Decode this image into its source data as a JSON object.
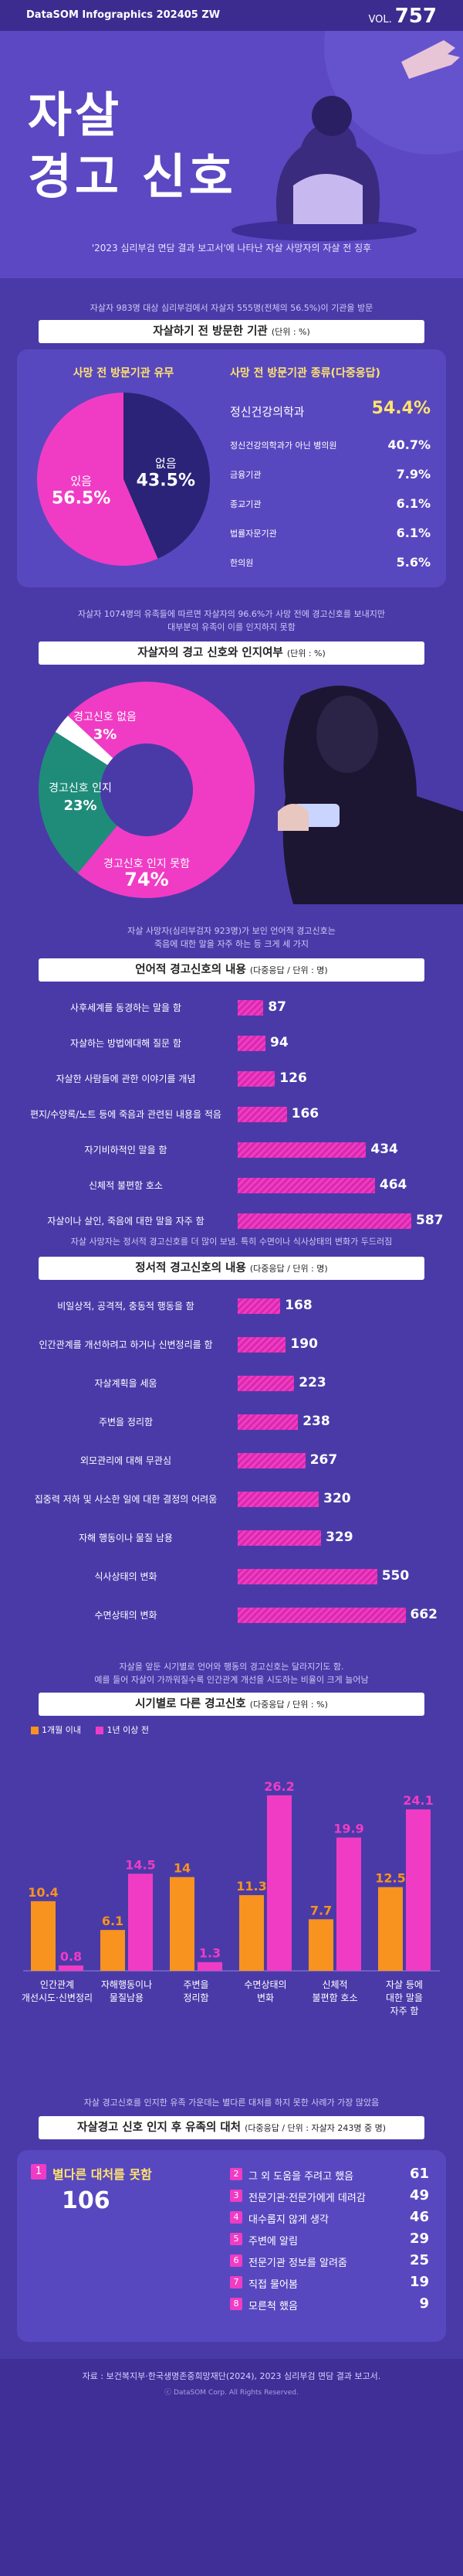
{
  "header": {
    "brand": "DataSOM Infographics 202405 ZW",
    "vol_label": "VOL.",
    "vol_num": "757"
  },
  "hero": {
    "title_line1": "자살",
    "title_line2": "경고 신호",
    "subtitle": "'2023 심리부검 면담 결과 보고서'에 나타난 자살 사망자의 자살 전 징후"
  },
  "section1": {
    "note": "자살자 983명 대상 심리부검에서 자살자 555명(전체의 56.5%)이 기관을 방문",
    "title": "자살하기 전 방문한 기관",
    "unit": "(단위 : %)",
    "pie_title": "사망 전 방문기관 유무",
    "list_title": "사망 전 방문기관 종류(다중응답)"
  },
  "section2": {
    "note_line1": "자살자 1074명의 유족들에 따르면 자살자의 96.6%가 사망 전에 경고신호를 보내지만",
    "note_line2": "대부분의 유족이 이를 인지하지 못함",
    "title": "자살자의 경고 신호와 인지여부",
    "unit": "(단위 : %)"
  },
  "section3": {
    "note_line1": "자살 사망자(심리부검자 923명)가 보인 언어적 경고신호는",
    "note_line2": "죽음에 대한 말을 자주 하는 등 크게 세 가지",
    "title": "언어적 경고신호의 내용",
    "unit": "(다중응답 / 단위 : 명)"
  },
  "section4": {
    "note": "자살 사망자는 정서적 경고신호를 더 많이 보냄. 특히 수면이나 식사상태의 변화가 두드러짐",
    "title": "정서적 경고신호의 내용",
    "unit": "(다중응답 / 단위 : 명)"
  },
  "section5": {
    "note_line1": "자살을 앞둔 시기별로 언어와 행동의 경고신호는 달라지기도 함.",
    "note_line2": "예를 들어 자살이 가까워질수록 인간관계 개선을 시도하는 비율이 크게 늘어남",
    "title": "시기별로 다른 경고신호",
    "unit": "(다중응답 / 단위 : %)"
  },
  "section6": {
    "note": "자살 경고신호를 인지한 유족 가운데는 별다른 대처를 하지 못한 사례가 가장 많았음",
    "title": "자살경고 신호 인지 후 유족의 대처",
    "unit": "(다중응답 / 단위 : 자살자 243명 중 명)",
    "first": {
      "num": "1",
      "label": "별다른 대처를 못함",
      "value": "106"
    },
    "others": [
      {
        "num": "2",
        "label": "그 외 도움을 주려고 했음",
        "value": "61"
      },
      {
        "num": "3",
        "label": "전문기관·전문가에게 데려감",
        "value": "49"
      },
      {
        "num": "4",
        "label": "대수롭지 않게 생각",
        "value": "46"
      },
      {
        "num": "5",
        "label": "주변에 알림",
        "value": "29"
      },
      {
        "num": "6",
        "label": "전문기관 정보를 알려줌",
        "value": "25"
      },
      {
        "num": "7",
        "label": "직접 물어봄",
        "value": "19"
      },
      {
        "num": "8",
        "label": "모른척 했음",
        "value": "9"
      }
    ]
  },
  "footer": {
    "source": "자료 : 보건복지부·한국생명존중희망재단(2024), 2023 심리부검 면담 결과 보고서.",
    "copyright": "ⓒ DataSOM Corp. All Rights Reserved."
  },
  "colors": {
    "background": "#4a3aa8",
    "pink": "#f03cc4",
    "navy": "#2a2378",
    "teal": "#1f8c7a",
    "orange": "#f7931e"
  },
  "chart_data": [
    {
      "type": "pie",
      "title": "사망 전 방문기관 유무",
      "slices": [
        {
          "label": "없음",
          "value": 43.5,
          "color": "#2a2378"
        },
        {
          "label": "있음",
          "value": 56.5,
          "color": "#f03cc4"
        }
      ]
    },
    {
      "type": "table",
      "title": "사망 전 방문기관 종류(다중응답)",
      "rows": [
        {
          "label": "정신건강의학과",
          "value": 54.4
        },
        {
          "label": "정신건강의학과가 아닌 병의원",
          "value": 40.7
        },
        {
          "label": "금융기관",
          "value": 7.9
        },
        {
          "label": "종교기관",
          "value": 6.1
        },
        {
          "label": "법률자문기관",
          "value": 6.1
        },
        {
          "label": "한의원",
          "value": 5.6
        }
      ]
    },
    {
      "type": "pie",
      "title": "자살자의 경고 신호와 인지여부",
      "slices": [
        {
          "label": "경고신호 인지 못함",
          "value": 74,
          "color": "#f03cc4"
        },
        {
          "label": "경고신호 인지",
          "value": 23,
          "color": "#1f8c7a"
        },
        {
          "label": "경고신호 없음",
          "value": 3,
          "color": "#ffffff"
        }
      ]
    },
    {
      "type": "bar",
      "title": "언어적 경고신호의 내용",
      "categories": [
        "사후세계를 동경하는 말을 함",
        "자살하는 방법에대해 질문 함",
        "자살한 사람들에 관한 이야기를 개념",
        "편지/수양록/노트 등에 죽음과 관련된 내용을 적음",
        "자기비하적인 말을 함",
        "신체적 불편함 호소",
        "자살이나 살인, 죽음에 대한 말을 자주 함"
      ],
      "values": [
        87,
        94,
        126,
        166,
        434,
        464,
        587
      ],
      "xlim": [
        0,
        600
      ]
    },
    {
      "type": "bar",
      "title": "정서적 경고신호의 내용",
      "categories": [
        "비일상적, 공격적, 충동적 행동을 함",
        "인간관계를 개선하려고 하거나 신변정리를 함",
        "자살계획을 세움",
        "주변을 정리함",
        "외모관리에 대해 무관심",
        "집중력 저하 및 사소한 일에 대한 결정의 어려움",
        "자해 행동이나 물질 남용",
        "식사상태의 변화",
        "수면상태의 변화"
      ],
      "values": [
        168,
        190,
        223,
        238,
        267,
        320,
        329,
        550,
        662
      ],
      "xlim": [
        0,
        700
      ]
    },
    {
      "type": "bar",
      "title": "시기별로 다른 경고신호",
      "categories": [
        "인간관계 개선시도·신변정리",
        "자해행동이나 물질남용",
        "주변을 정리함",
        "수면상태의 변화",
        "신체적 불편함 호소",
        "자살 등에 대한 말을 자주 함"
      ],
      "series": [
        {
          "name": "1개월 이내",
          "values": [
            10.4,
            6.1,
            14,
            11.3,
            7.7,
            12.5
          ],
          "color": "#f7931e"
        },
        {
          "name": "1년 이상 전",
          "values": [
            0.8,
            14.5,
            1.3,
            26.2,
            19.9,
            24.1
          ],
          "color": "#f03cc4"
        }
      ],
      "ylim": [
        0,
        30
      ]
    }
  ]
}
